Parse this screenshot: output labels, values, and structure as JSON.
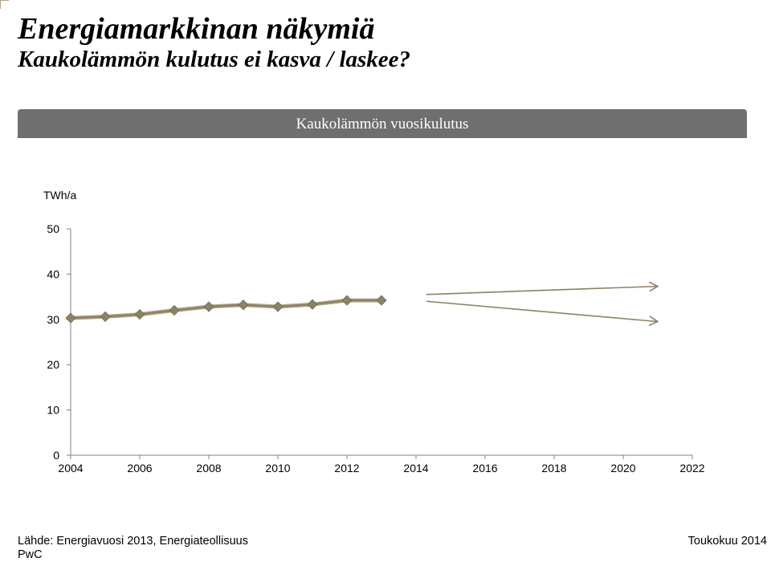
{
  "header": {
    "title": "Energiamarkkinan näkymiä",
    "subtitle": "Kaukolämmön kulutus ei kasva / laskee?"
  },
  "chart_data": {
    "type": "line",
    "title": "Kaukolämmön vuosikulutus",
    "ylabel": "TWh/a",
    "xlabel": "",
    "xlim": [
      2004,
      2022
    ],
    "ylim": [
      0,
      50
    ],
    "x_ticks": [
      2004,
      2006,
      2008,
      2010,
      2012,
      2014,
      2016,
      2018,
      2020,
      2022
    ],
    "y_ticks": [
      0,
      10,
      20,
      30,
      40,
      50
    ],
    "grid": false,
    "legend": "none",
    "series": [
      {
        "x": [
          2004,
          2005,
          2006,
          2007,
          2008,
          2009,
          2010,
          2011,
          2012,
          2013
        ],
        "values": [
          30.3,
          30.6,
          31.1,
          32.0,
          32.8,
          33.2,
          32.8,
          33.3,
          34.2,
          34.2
        ],
        "color": "#8c8265"
      }
    ],
    "projections": [
      {
        "from": [
          2014.3,
          35.5
        ],
        "to": [
          2021.0,
          37.3
        ],
        "color": "#8c8265"
      },
      {
        "from": [
          2014.3,
          34.0
        ],
        "to": [
          2021.0,
          29.5
        ],
        "color": "#8c8265"
      }
    ]
  },
  "footer": {
    "source": "Lähde: Energiavuosi 2013, Energiateollisuus",
    "org": "PwC",
    "date": "Toukokuu 2014"
  },
  "colors": {
    "header_bg": "#6f6f6f",
    "axis": "#808080",
    "series": "#8c8265",
    "marker": "#8c8265"
  }
}
